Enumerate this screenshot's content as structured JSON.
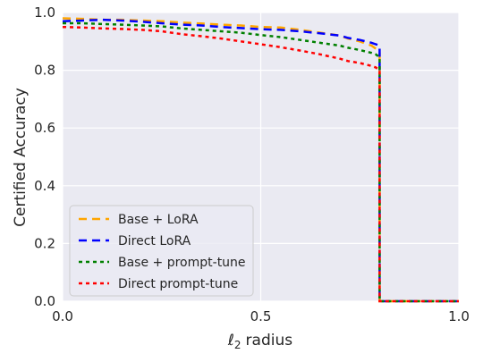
{
  "chart_data": {
    "type": "line",
    "title": "",
    "xlabel": "radius",
    "xlabel_symbol": "ℓ",
    "xlabel_subscript": "2",
    "ylabel": "Certified Accuracy",
    "xlim": [
      0.0,
      1.0
    ],
    "ylim": [
      0.0,
      1.0
    ],
    "x_ticks": [
      "0.0",
      "0.5",
      "1.0"
    ],
    "y_ticks": [
      "0.0",
      "0.2",
      "0.4",
      "0.6",
      "0.8",
      "1.0"
    ],
    "x_tick_values": [
      0.0,
      0.5,
      1.0
    ],
    "y_tick_values": [
      0.0,
      0.2,
      0.4,
      0.6,
      0.8,
      1.0
    ],
    "grid": true,
    "legend_position": "lower-left",
    "background": "#eaeaf2",
    "series": [
      {
        "name": "Base + LoRA",
        "color": "#ffa500",
        "dash": "dashed",
        "x": [
          0.0,
          0.05,
          0.1,
          0.15,
          0.2,
          0.25,
          0.3,
          0.35,
          0.4,
          0.45,
          0.5,
          0.55,
          0.6,
          0.65,
          0.7,
          0.72,
          0.75,
          0.78,
          0.79,
          0.795,
          0.8,
          0.8,
          0.85,
          0.9,
          0.95,
          1.0
        ],
        "y": [
          0.98,
          0.978,
          0.975,
          0.975,
          0.972,
          0.97,
          0.965,
          0.962,
          0.958,
          0.955,
          0.95,
          0.948,
          0.94,
          0.93,
          0.92,
          0.91,
          0.9,
          0.885,
          0.875,
          0.87,
          0.86,
          0.0,
          0.0,
          0.0,
          0.0,
          0.0
        ]
      },
      {
        "name": "Direct LoRA",
        "color": "#0000ff",
        "dash": "dashed",
        "x": [
          0.0,
          0.05,
          0.1,
          0.15,
          0.2,
          0.25,
          0.3,
          0.35,
          0.4,
          0.45,
          0.5,
          0.55,
          0.6,
          0.65,
          0.7,
          0.72,
          0.75,
          0.78,
          0.79,
          0.795,
          0.8,
          0.8,
          0.85,
          0.9,
          0.95,
          1.0
        ],
        "y": [
          0.97,
          0.972,
          0.975,
          0.972,
          0.968,
          0.963,
          0.958,
          0.955,
          0.95,
          0.946,
          0.942,
          0.94,
          0.935,
          0.928,
          0.92,
          0.912,
          0.905,
          0.895,
          0.89,
          0.888,
          0.885,
          0.0,
          0.0,
          0.0,
          0.0,
          0.0
        ]
      },
      {
        "name": "Base + prompt-tune",
        "color": "#008000",
        "dash": "dotted",
        "x": [
          0.0,
          0.05,
          0.1,
          0.15,
          0.2,
          0.25,
          0.3,
          0.35,
          0.4,
          0.45,
          0.5,
          0.55,
          0.6,
          0.65,
          0.7,
          0.72,
          0.75,
          0.78,
          0.79,
          0.795,
          0.8,
          0.8,
          0.85,
          0.9,
          0.95,
          1.0
        ],
        "y": [
          0.963,
          0.963,
          0.96,
          0.958,
          0.955,
          0.952,
          0.945,
          0.94,
          0.935,
          0.93,
          0.922,
          0.915,
          0.905,
          0.895,
          0.885,
          0.878,
          0.87,
          0.86,
          0.855,
          0.85,
          0.845,
          0.0,
          0.0,
          0.0,
          0.0,
          0.0
        ]
      },
      {
        "name": "Direct prompt-tune",
        "color": "#ff0000",
        "dash": "dotted",
        "x": [
          0.0,
          0.05,
          0.1,
          0.15,
          0.2,
          0.25,
          0.3,
          0.35,
          0.4,
          0.45,
          0.5,
          0.55,
          0.6,
          0.65,
          0.7,
          0.72,
          0.75,
          0.78,
          0.79,
          0.795,
          0.8,
          0.8,
          0.85,
          0.9,
          0.95,
          1.0
        ],
        "y": [
          0.95,
          0.948,
          0.945,
          0.943,
          0.94,
          0.935,
          0.925,
          0.918,
          0.91,
          0.9,
          0.89,
          0.88,
          0.868,
          0.855,
          0.84,
          0.832,
          0.825,
          0.815,
          0.81,
          0.805,
          0.8,
          0.0,
          0.0,
          0.0,
          0.0,
          0.0
        ]
      }
    ]
  }
}
